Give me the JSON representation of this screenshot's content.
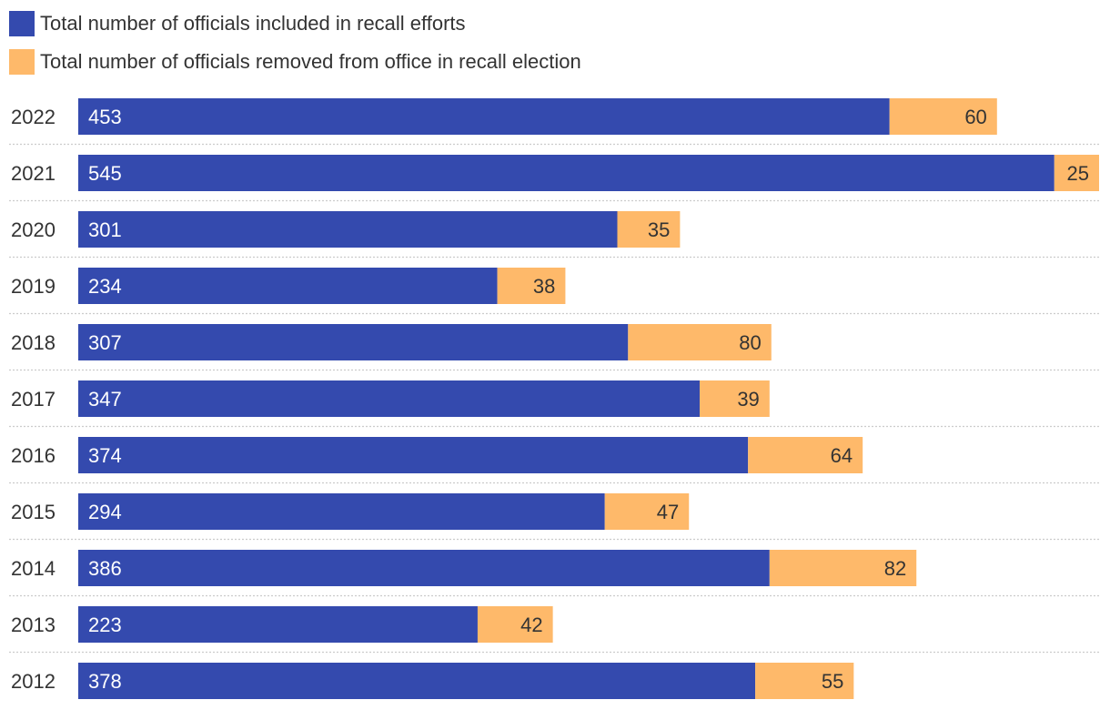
{
  "colors": {
    "included": "#344AAE",
    "removed": "#FEB96A",
    "gridline": "#cccccc"
  },
  "chart_data": {
    "type": "bar",
    "orientation": "horizontal",
    "stacked": true,
    "title": "",
    "xlabel": "",
    "ylabel": "",
    "categories": [
      "2022",
      "2021",
      "2020",
      "2019",
      "2018",
      "2017",
      "2016",
      "2015",
      "2014",
      "2013",
      "2012"
    ],
    "series": [
      {
        "name": "Total number of officials included in recall efforts",
        "values": [
          453,
          545,
          301,
          234,
          307,
          347,
          374,
          294,
          386,
          223,
          378
        ]
      },
      {
        "name": "Total number of officials removed from office in recall election",
        "values": [
          60,
          25,
          35,
          38,
          80,
          39,
          64,
          47,
          82,
          42,
          55
        ]
      }
    ],
    "xlim": [
      0,
      570
    ],
    "grid": false,
    "legend_position": "top-left"
  }
}
